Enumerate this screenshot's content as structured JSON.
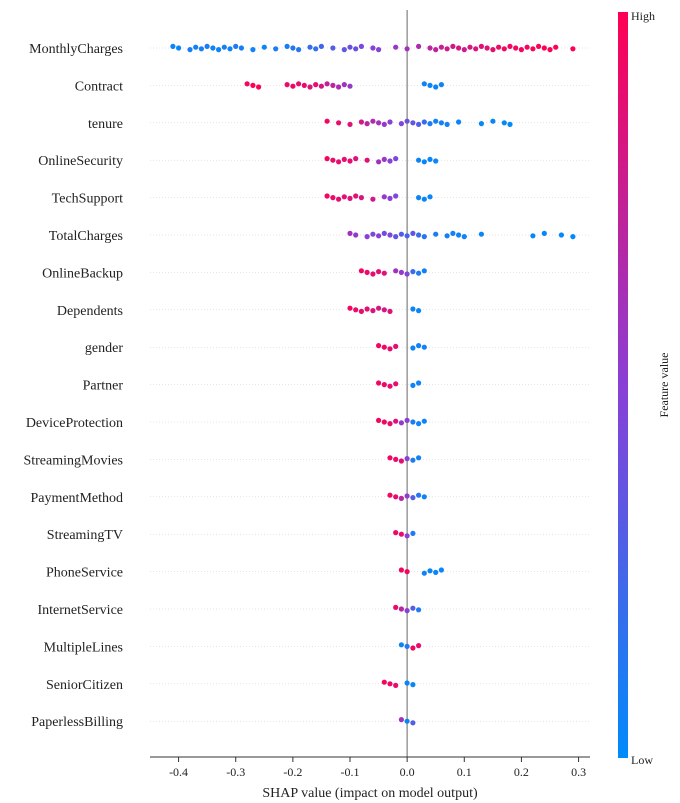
{
  "chart_data": {
    "type": "scatter",
    "subtype": "shap-beeswarm",
    "title": "",
    "xlabel": "SHAP value (impact on model output)",
    "xlim": [
      -0.45,
      0.32
    ],
    "xticks": [
      -0.4,
      -0.3,
      -0.2,
      -0.1,
      0.0,
      0.1,
      0.2,
      0.3
    ],
    "xtick_labels": [
      "-0.4",
      "-0.3",
      "-0.2",
      "-0.1",
      "0.0",
      "0.1",
      "0.2",
      "0.3"
    ],
    "colorbar": {
      "label": "Feature value",
      "high": "High",
      "low": "Low"
    },
    "colors": {
      "low": "#008bfb",
      "high": "#ff0052",
      "zero_line": "#999999",
      "row_guide": "#cccccc"
    },
    "features": [
      {
        "name": "MonthlyCharges",
        "points": [
          [
            -0.41,
            0.05
          ],
          [
            -0.4,
            0.02
          ],
          [
            -0.38,
            0.08
          ],
          [
            -0.37,
            0.07
          ],
          [
            -0.36,
            0.06
          ],
          [
            -0.35,
            0.1
          ],
          [
            -0.34,
            0.07
          ],
          [
            -0.33,
            0.03
          ],
          [
            -0.32,
            0.09
          ],
          [
            -0.31,
            0.05
          ],
          [
            -0.3,
            0.12
          ],
          [
            -0.29,
            0.08
          ],
          [
            -0.27,
            0.06
          ],
          [
            -0.25,
            0.04
          ],
          [
            -0.23,
            0.1
          ],
          [
            -0.21,
            0.09
          ],
          [
            -0.2,
            0.15
          ],
          [
            -0.19,
            0.12
          ],
          [
            -0.17,
            0.2
          ],
          [
            -0.16,
            0.18
          ],
          [
            -0.15,
            0.25
          ],
          [
            -0.13,
            0.3
          ],
          [
            -0.11,
            0.35
          ],
          [
            -0.1,
            0.4
          ],
          [
            -0.09,
            0.38
          ],
          [
            -0.08,
            0.45
          ],
          [
            -0.06,
            0.5
          ],
          [
            -0.05,
            0.48
          ],
          [
            -0.02,
            0.55
          ],
          [
            0.0,
            0.6
          ],
          [
            0.02,
            0.65
          ],
          [
            0.04,
            0.7
          ],
          [
            0.05,
            0.72
          ],
          [
            0.06,
            0.75
          ],
          [
            0.07,
            0.78
          ],
          [
            0.08,
            0.8
          ],
          [
            0.09,
            0.82
          ],
          [
            0.1,
            0.78
          ],
          [
            0.11,
            0.82
          ],
          [
            0.12,
            0.85
          ],
          [
            0.13,
            0.88
          ],
          [
            0.14,
            0.86
          ],
          [
            0.15,
            0.9
          ],
          [
            0.16,
            0.92
          ],
          [
            0.17,
            0.94
          ],
          [
            0.18,
            0.95
          ],
          [
            0.19,
            0.96
          ],
          [
            0.2,
            0.97
          ],
          [
            0.21,
            0.95
          ],
          [
            0.22,
            0.97
          ],
          [
            0.23,
            0.98
          ],
          [
            0.24,
            0.99
          ],
          [
            0.25,
            0.98
          ],
          [
            0.26,
            0.99
          ],
          [
            0.29,
            1.0
          ]
        ]
      },
      {
        "name": "Contract",
        "points": [
          [
            -0.28,
            0.95
          ],
          [
            -0.27,
            1.0
          ],
          [
            -0.26,
            0.98
          ],
          [
            -0.21,
            0.9
          ],
          [
            -0.2,
            0.95
          ],
          [
            -0.19,
            0.88
          ],
          [
            -0.18,
            0.92
          ],
          [
            -0.17,
            0.85
          ],
          [
            -0.16,
            0.9
          ],
          [
            -0.15,
            0.8
          ],
          [
            -0.14,
            0.75
          ],
          [
            -0.13,
            0.7
          ],
          [
            -0.12,
            0.65
          ],
          [
            -0.11,
            0.6
          ],
          [
            -0.1,
            0.55
          ],
          [
            0.03,
            0.05
          ],
          [
            0.04,
            0.02
          ],
          [
            0.05,
            0.03
          ],
          [
            0.06,
            0.05
          ]
        ]
      },
      {
        "name": "tenure",
        "points": [
          [
            -0.14,
            0.95
          ],
          [
            -0.12,
            0.9
          ],
          [
            -0.1,
            0.85
          ],
          [
            -0.08,
            0.8
          ],
          [
            -0.07,
            0.7
          ],
          [
            -0.06,
            0.65
          ],
          [
            -0.05,
            0.6
          ],
          [
            -0.04,
            0.55
          ],
          [
            -0.03,
            0.5
          ],
          [
            -0.01,
            0.45
          ],
          [
            0.0,
            0.4
          ],
          [
            0.01,
            0.35
          ],
          [
            0.02,
            0.3
          ],
          [
            0.03,
            0.2
          ],
          [
            0.04,
            0.1
          ],
          [
            0.05,
            0.05
          ],
          [
            0.06,
            0.08
          ],
          [
            0.07,
            0.06
          ],
          [
            0.09,
            0.03
          ],
          [
            0.13,
            0.02
          ],
          [
            0.15,
            0.03
          ],
          [
            0.17,
            0.02
          ],
          [
            0.18,
            0.01
          ]
        ]
      },
      {
        "name": "OnlineSecurity",
        "points": [
          [
            -0.14,
            0.95
          ],
          [
            -0.13,
            0.92
          ],
          [
            -0.12,
            0.9
          ],
          [
            -0.11,
            0.88
          ],
          [
            -0.1,
            0.9
          ],
          [
            -0.09,
            0.85
          ],
          [
            -0.07,
            0.88
          ],
          [
            -0.05,
            0.6
          ],
          [
            -0.04,
            0.55
          ],
          [
            -0.03,
            0.5
          ],
          [
            -0.02,
            0.45
          ],
          [
            0.02,
            0.05
          ],
          [
            0.03,
            0.03
          ],
          [
            0.04,
            0.02
          ],
          [
            0.05,
            0.04
          ]
        ]
      },
      {
        "name": "TechSupport",
        "points": [
          [
            -0.14,
            0.95
          ],
          [
            -0.13,
            0.92
          ],
          [
            -0.12,
            0.9
          ],
          [
            -0.11,
            0.88
          ],
          [
            -0.1,
            0.85
          ],
          [
            -0.09,
            0.86
          ],
          [
            -0.08,
            0.82
          ],
          [
            -0.06,
            0.8
          ],
          [
            -0.04,
            0.55
          ],
          [
            -0.03,
            0.5
          ],
          [
            -0.02,
            0.45
          ],
          [
            0.02,
            0.05
          ],
          [
            0.03,
            0.03
          ],
          [
            0.04,
            0.02
          ]
        ]
      },
      {
        "name": "TotalCharges",
        "points": [
          [
            -0.1,
            0.6
          ],
          [
            -0.09,
            0.55
          ],
          [
            -0.07,
            0.5
          ],
          [
            -0.06,
            0.45
          ],
          [
            -0.05,
            0.5
          ],
          [
            -0.04,
            0.4
          ],
          [
            -0.03,
            0.45
          ],
          [
            -0.02,
            0.35
          ],
          [
            -0.01,
            0.3
          ],
          [
            0.0,
            0.25
          ],
          [
            0.01,
            0.35
          ],
          [
            0.02,
            0.2
          ],
          [
            0.03,
            0.15
          ],
          [
            0.05,
            0.1
          ],
          [
            0.07,
            0.08
          ],
          [
            0.08,
            0.06
          ],
          [
            0.09,
            0.05
          ],
          [
            0.1,
            0.06
          ],
          [
            0.13,
            0.04
          ],
          [
            0.22,
            0.02
          ],
          [
            0.24,
            0.03
          ],
          [
            0.27,
            0.02
          ],
          [
            0.29,
            0.01
          ]
        ]
      },
      {
        "name": "OnlineBackup",
        "points": [
          [
            -0.08,
            0.95
          ],
          [
            -0.07,
            0.92
          ],
          [
            -0.06,
            0.9
          ],
          [
            -0.05,
            0.88
          ],
          [
            -0.04,
            0.85
          ],
          [
            -0.02,
            0.6
          ],
          [
            -0.01,
            0.55
          ],
          [
            0.0,
            0.45
          ],
          [
            0.01,
            0.2
          ],
          [
            0.02,
            0.1
          ],
          [
            0.03,
            0.05
          ]
        ]
      },
      {
        "name": "Dependents",
        "points": [
          [
            -0.1,
            0.95
          ],
          [
            -0.09,
            0.92
          ],
          [
            -0.08,
            0.9
          ],
          [
            -0.07,
            0.88
          ],
          [
            -0.06,
            0.85
          ],
          [
            -0.05,
            0.82
          ],
          [
            -0.04,
            0.8
          ],
          [
            -0.03,
            0.85
          ],
          [
            0.01,
            0.05
          ],
          [
            0.02,
            0.04
          ]
        ]
      },
      {
        "name": "gender",
        "points": [
          [
            -0.05,
            0.95
          ],
          [
            -0.04,
            0.92
          ],
          [
            -0.03,
            0.9
          ],
          [
            -0.02,
            0.88
          ],
          [
            0.01,
            0.05
          ],
          [
            0.02,
            0.04
          ],
          [
            0.03,
            0.06
          ]
        ]
      },
      {
        "name": "Partner",
        "points": [
          [
            -0.05,
            0.95
          ],
          [
            -0.04,
            0.92
          ],
          [
            -0.03,
            0.9
          ],
          [
            -0.02,
            0.88
          ],
          [
            0.01,
            0.05
          ],
          [
            0.02,
            0.04
          ]
        ]
      },
      {
        "name": "DeviceProtection",
        "points": [
          [
            -0.05,
            0.95
          ],
          [
            -0.04,
            0.92
          ],
          [
            -0.03,
            0.9
          ],
          [
            -0.02,
            0.85
          ],
          [
            -0.01,
            0.55
          ],
          [
            0.0,
            0.5
          ],
          [
            0.01,
            0.1
          ],
          [
            0.02,
            0.06
          ],
          [
            0.03,
            0.05
          ]
        ]
      },
      {
        "name": "StreamingMovies",
        "points": [
          [
            -0.03,
            0.95
          ],
          [
            -0.02,
            0.92
          ],
          [
            -0.01,
            0.88
          ],
          [
            0.0,
            0.5
          ],
          [
            0.01,
            0.1
          ],
          [
            0.02,
            0.05
          ]
        ]
      },
      {
        "name": "PaymentMethod",
        "points": [
          [
            -0.03,
            0.95
          ],
          [
            -0.02,
            0.9
          ],
          [
            -0.01,
            0.7
          ],
          [
            0.0,
            0.55
          ],
          [
            0.01,
            0.3
          ],
          [
            0.02,
            0.15
          ],
          [
            0.03,
            0.05
          ]
        ]
      },
      {
        "name": "StreamingTV",
        "points": [
          [
            -0.02,
            0.95
          ],
          [
            -0.01,
            0.9
          ],
          [
            0.0,
            0.5
          ],
          [
            0.01,
            0.1
          ]
        ]
      },
      {
        "name": "PhoneService",
        "points": [
          [
            -0.01,
            0.95
          ],
          [
            0.0,
            0.95
          ],
          [
            0.03,
            0.05
          ],
          [
            0.04,
            0.03
          ],
          [
            0.05,
            0.04
          ],
          [
            0.06,
            0.02
          ]
        ]
      },
      {
        "name": "InternetService",
        "points": [
          [
            -0.02,
            0.9
          ],
          [
            -0.01,
            0.7
          ],
          [
            0.0,
            0.5
          ],
          [
            0.01,
            0.3
          ],
          [
            0.02,
            0.1
          ]
        ]
      },
      {
        "name": "MultipleLines",
        "points": [
          [
            -0.01,
            0.05
          ],
          [
            0.0,
            0.1
          ],
          [
            0.01,
            0.95
          ],
          [
            0.02,
            0.9
          ]
        ]
      },
      {
        "name": "SeniorCitizen",
        "points": [
          [
            -0.04,
            0.95
          ],
          [
            -0.03,
            0.92
          ],
          [
            -0.02,
            0.9
          ],
          [
            0.0,
            0.05
          ],
          [
            0.01,
            0.04
          ]
        ]
      },
      {
        "name": "PaperlessBilling",
        "points": [
          [
            -0.01,
            0.6
          ],
          [
            0.0,
            0.05
          ],
          [
            0.01,
            0.3
          ]
        ]
      }
    ]
  }
}
